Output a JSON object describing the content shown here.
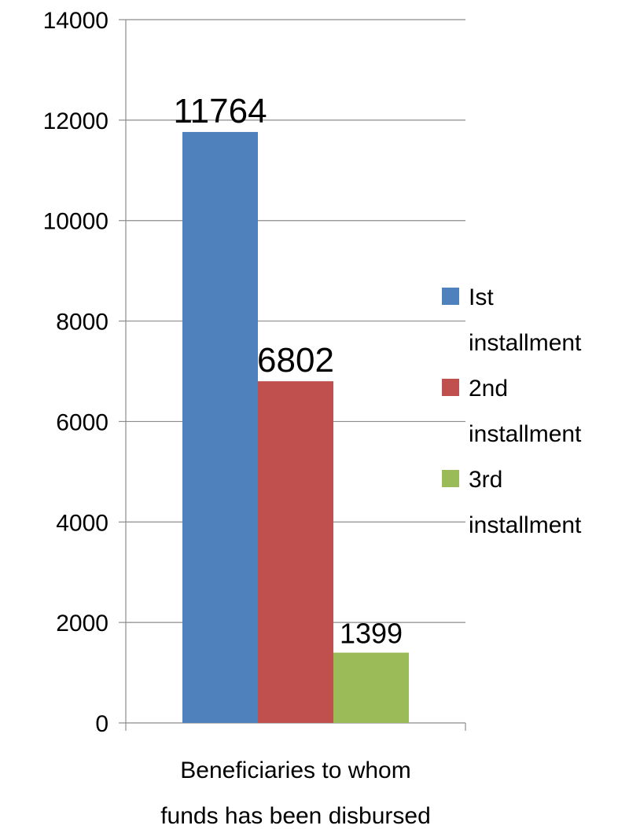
{
  "chart_data": {
    "type": "bar",
    "categories": [
      "Beneficiaries to whom funds has been disbursed"
    ],
    "category_label_lines": [
      "Beneficiaries to whom",
      "funds has been disbursed"
    ],
    "series": [
      {
        "name": "Ist installment",
        "name_lines": [
          "Ist",
          "installment"
        ],
        "color": "#4F81BD",
        "values": [
          11764
        ]
      },
      {
        "name": "2nd installment",
        "name_lines": [
          "2nd",
          "installment"
        ],
        "color": "#C0504D",
        "values": [
          6802
        ]
      },
      {
        "name": "3rd installment",
        "name_lines": [
          "3rd",
          "installment"
        ],
        "color": "#9BBB59",
        "values": [
          1399
        ]
      }
    ],
    "data_labels": [
      "11764",
      "6802",
      "1399"
    ],
    "yticks": [
      "0",
      "2000",
      "4000",
      "6000",
      "8000",
      "10000",
      "12000",
      "14000"
    ],
    "ylim": [
      0,
      14000
    ],
    "grid": true,
    "legend": "right"
  }
}
